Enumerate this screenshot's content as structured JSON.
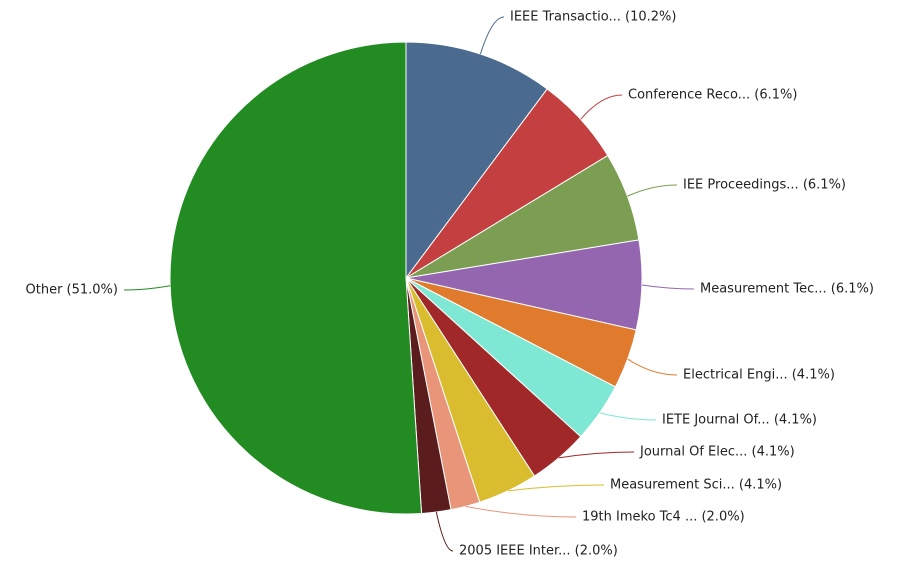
{
  "chart_data": {
    "type": "pie",
    "categories": [
      "IEEE Transactio...",
      "Conference Reco...",
      "IEE Proceedings...",
      "Measurement Tec...",
      "Electrical Engi...",
      "IETE Journal Of...",
      "Journal Of Elec...",
      "Measurement Sci...",
      "19th Imeko Tc4 ...",
      "2005 IEEE Inter...",
      "Other"
    ],
    "values": [
      10.2,
      6.1,
      6.1,
      6.1,
      4.1,
      4.1,
      4.1,
      4.1,
      2.0,
      2.0,
      51.0
    ],
    "value_labels": [
      "IEEE Transactio... (10.2%)",
      "Conference Reco... (6.1%)",
      "IEE Proceedings... (6.1%)",
      "Measurement Tec... (6.1%)",
      "Electrical Engi... (4.1%)",
      "IETE Journal Of... (4.1%)",
      "Journal Of Elec... (4.1%)",
      "Measurement Sci... (4.1%)",
      "19th Imeko Tc4 ... (2.0%)",
      "2005 IEEE Inter... (2.0%)",
      "Other (51.0%)"
    ],
    "colors": [
      "#4a6b8f",
      "#c44040",
      "#7b9e52",
      "#9466b0",
      "#e07b2e",
      "#7fe8d4",
      "#a02828",
      "#d9bd2f",
      "#e8957a",
      "#5a1c1c",
      "#228b22"
    ]
  }
}
